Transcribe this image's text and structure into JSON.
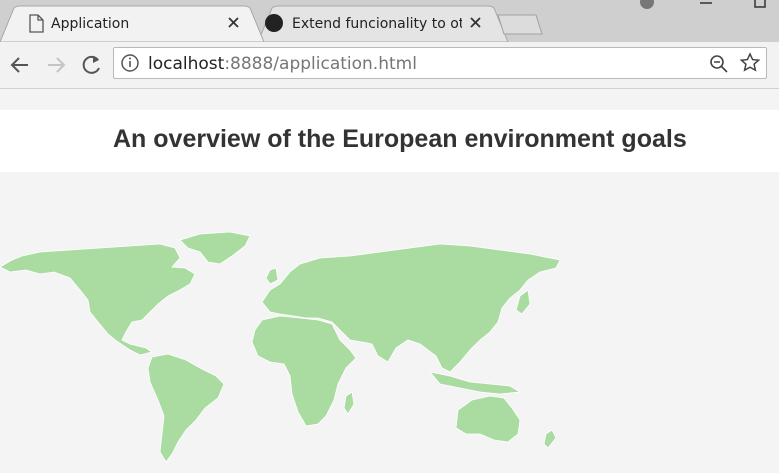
{
  "tabs": [
    {
      "title": "Application"
    },
    {
      "title": "Extend funcionality to oth"
    }
  ],
  "address_bar": {
    "host": "localhost",
    "rest": ":8888/application.html"
  },
  "page": {
    "title": "An overview of the European environment goals"
  }
}
